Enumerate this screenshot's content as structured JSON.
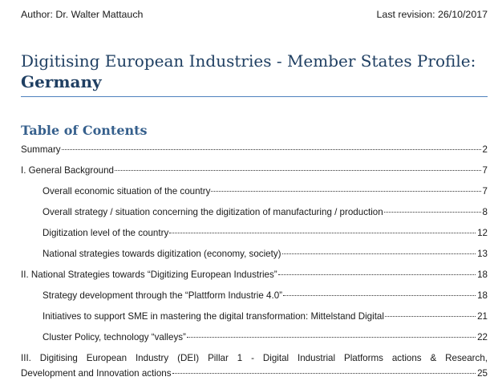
{
  "header": {
    "author": "Author: Dr. Walter Mattauch",
    "revision": "Last revision: 26/10/2017"
  },
  "title": {
    "line1": "Digitising European Industries - Member States Profile:",
    "line2": "Germany"
  },
  "toc": {
    "heading": "Table of Contents",
    "entries": [
      {
        "label": "Summary",
        "page": "2",
        "level": 1
      },
      {
        "label": "I. General Background",
        "page": "7",
        "level": 1
      },
      {
        "label": "Overall economic situation of the country",
        "page": "7",
        "level": 2
      },
      {
        "label": "Overall strategy / situation concerning the digitization of manufacturing / production",
        "page": "8",
        "level": 2
      },
      {
        "label": "Digitization level of the country",
        "page": "12",
        "level": 2
      },
      {
        "label": "National strategies towards digitization (economy, society)",
        "page": "13",
        "level": 2
      },
      {
        "label": "II. National Strategies towards “Digitizing European Industries”",
        "page": "18",
        "level": 1
      },
      {
        "label": "Strategy development through the “Plattform Industrie 4.0”",
        "page": "18",
        "level": 2
      },
      {
        "label": "Initiatives to support SME in mastering the digital transformation: Mittelstand Digital",
        "page": "21",
        "level": 2
      },
      {
        "label": "Cluster Policy, technology “valleys”",
        "page": "22",
        "level": 2
      }
    ],
    "multiline_entry": {
      "line1": "III. Digitising European Industry (DEI) Pillar 1 - Digital Industrial Platforms actions & Research,",
      "line2": "Development and Innovation actions",
      "page": "25"
    }
  }
}
